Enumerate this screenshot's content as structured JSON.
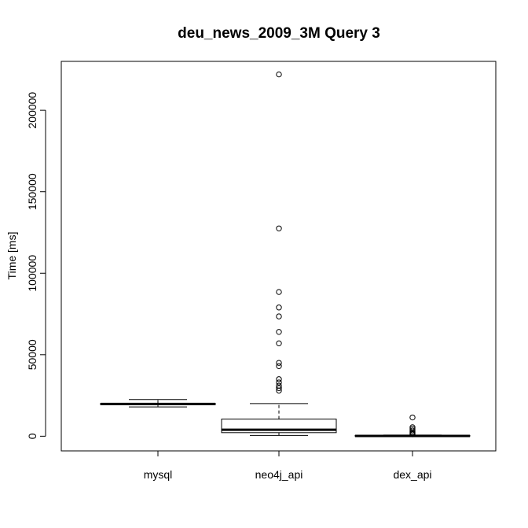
{
  "chart_data": {
    "type": "boxplot",
    "title": "deu_news_2009_3M Query 3",
    "xlabel": "",
    "ylabel": "Time [ms]",
    "ylim": [
      -9000,
      230000
    ],
    "yticks": [
      0,
      50000,
      100000,
      150000,
      200000
    ],
    "ytick_labels": [
      "0",
      "50000",
      "100000",
      "150000",
      "200000"
    ],
    "grid": false,
    "categories": [
      "mysql",
      "neo4j_api",
      "dex_api"
    ],
    "boxes": [
      {
        "name": "mysql",
        "whisker_low": 18000,
        "q1": 19300,
        "median": 19800,
        "q3": 20200,
        "whisker_high": 22500,
        "outliers": []
      },
      {
        "name": "neo4j_api",
        "whisker_low": 500,
        "q1": 2200,
        "median": 4000,
        "q3": 10500,
        "whisker_high": 20000,
        "outliers": [
          222000,
          127500,
          88500,
          79000,
          73500,
          64000,
          57000,
          45000,
          43000,
          35000,
          33000,
          31000,
          29500,
          28000
        ]
      },
      {
        "name": "dex_api",
        "whisker_low": 0,
        "q1": 50,
        "median": 200,
        "q3": 400,
        "whisker_high": 700,
        "outliers": [
          11500,
          5500,
          4500,
          3500,
          2500,
          1800,
          1200
        ]
      }
    ]
  }
}
